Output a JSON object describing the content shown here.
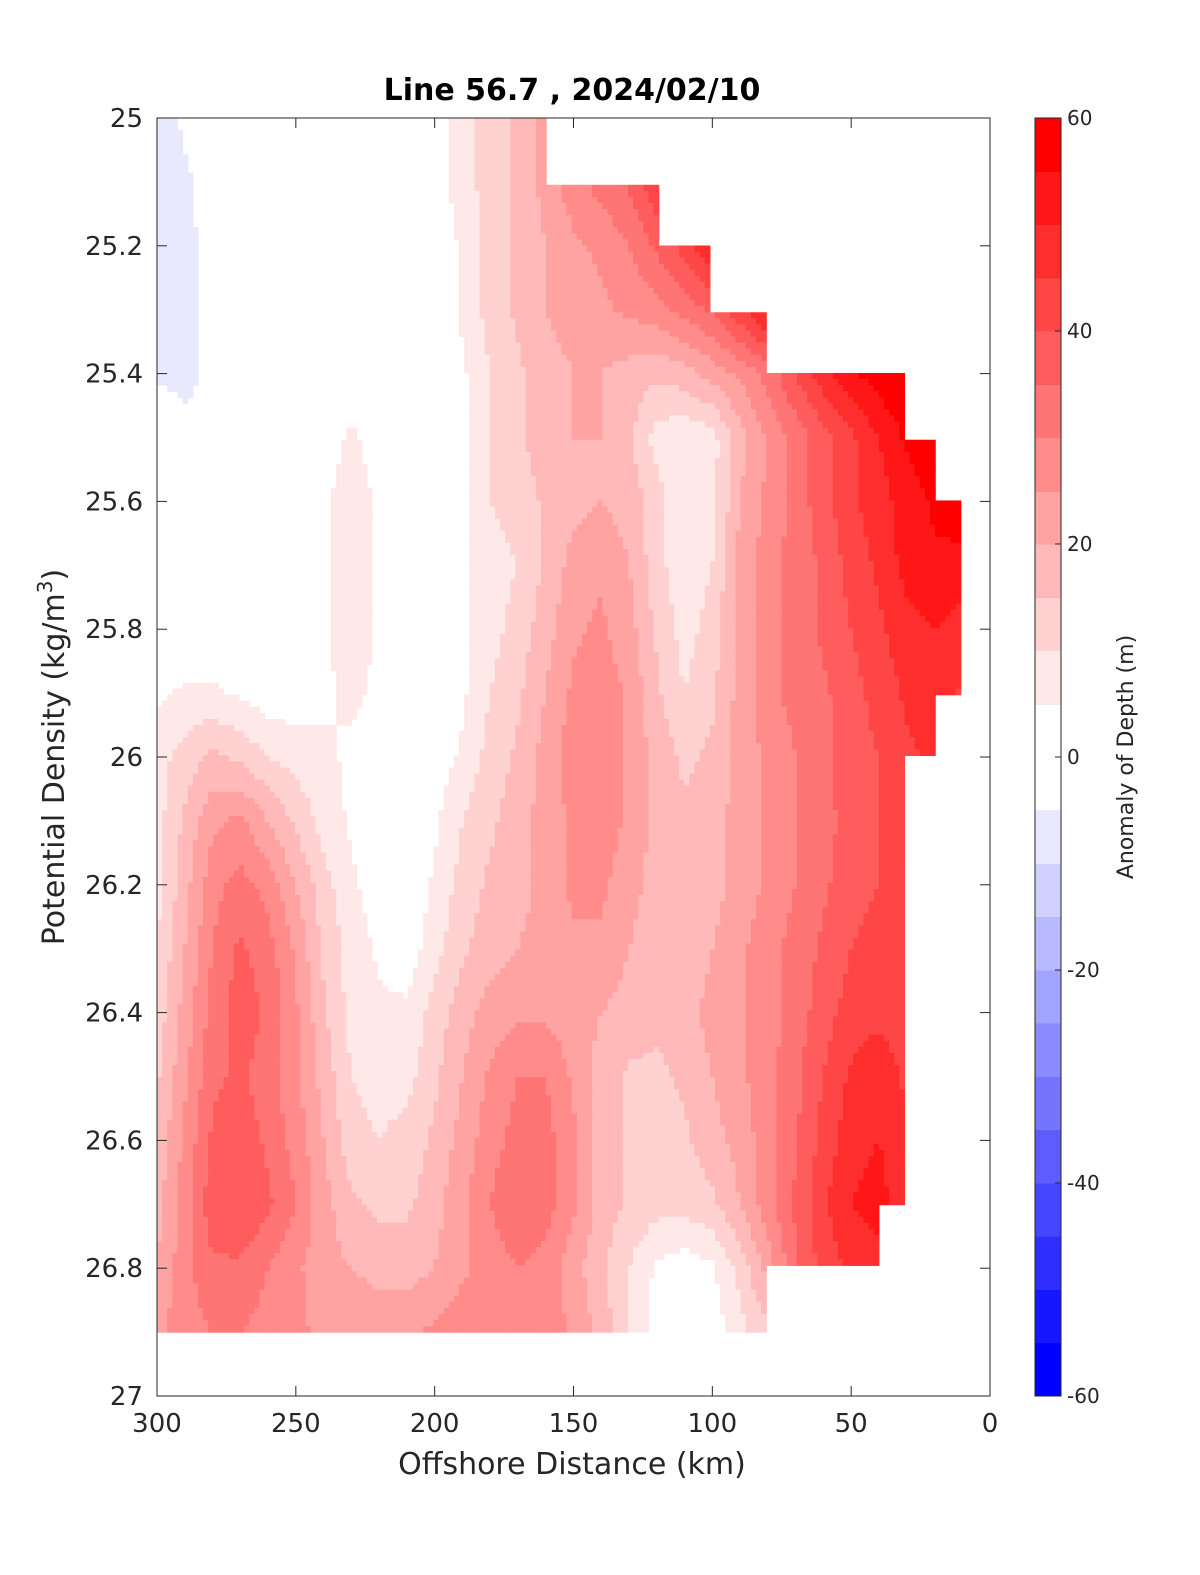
{
  "chart_data": {
    "type": "heatmap",
    "subtype": "filled-contour",
    "title": "Line 56.7 , 2024/02/10",
    "xlabel": "Offshore Distance (km)",
    "ylabel": "Potential Density (kg/m³)",
    "ylabel_parts": {
      "base": "Potential Density (kg/m",
      "sup": "3",
      "end": ")"
    },
    "xlim": [
      300,
      0
    ],
    "x_reversed": true,
    "ylim": [
      25,
      27
    ],
    "y_reversed": true,
    "xticks": [
      "300",
      "250",
      "200",
      "150",
      "100",
      "50",
      "0"
    ],
    "yticks": [
      "25",
      "25.2",
      "25.4",
      "25.6",
      "25.8",
      "26",
      "26.2",
      "26.4",
      "26.6",
      "26.8",
      "27"
    ],
    "colorbar": {
      "label": "Anomaly of Depth (m)",
      "range": [
        -60,
        60
      ],
      "step": 5,
      "ticks": [
        "60",
        "40",
        "20",
        "0",
        "-20",
        "-40",
        "-60"
      ],
      "colors": [
        "#ff0000",
        "#ffffff",
        "#0000ff"
      ]
    },
    "grid": false,
    "x": [
      300,
      290,
      280,
      270,
      260,
      250,
      240,
      230,
      220,
      210,
      200,
      190,
      180,
      170,
      160,
      150,
      140,
      130,
      120,
      110,
      100,
      90,
      80,
      70,
      60,
      50,
      40,
      30,
      20,
      10,
      5
    ],
    "y": [
      25.0,
      25.1,
      25.2,
      25.3,
      25.4,
      25.5,
      25.6,
      25.7,
      25.8,
      25.9,
      26.0,
      26.1,
      26.2,
      26.3,
      26.4,
      26.5,
      26.6,
      26.7,
      26.8,
      26.9
    ],
    "z": [
      [
        -8,
        -4,
        0,
        0,
        0,
        0,
        0,
        0,
        0,
        0,
        2,
        8,
        12,
        16,
        22,
        null,
        null,
        null,
        null,
        null,
        null,
        null,
        null,
        null,
        null,
        null,
        null,
        null,
        null,
        null,
        null
      ],
      [
        -8,
        -6,
        -2,
        0,
        0,
        0,
        0,
        0,
        0,
        0,
        2,
        8,
        12,
        16,
        22,
        28,
        32,
        36,
        44,
        null,
        null,
        null,
        null,
        null,
        null,
        null,
        null,
        null,
        null,
        null,
        null
      ],
      [
        -6,
        -6,
        -4,
        0,
        0,
        0,
        0,
        0,
        0,
        0,
        0,
        6,
        12,
        16,
        20,
        24,
        26,
        30,
        36,
        42,
        50,
        null,
        null,
        null,
        null,
        null,
        null,
        null,
        null,
        null,
        null
      ],
      [
        -6,
        -6,
        -4,
        0,
        0,
        0,
        0,
        0,
        0,
        0,
        0,
        6,
        12,
        16,
        20,
        22,
        24,
        26,
        28,
        32,
        36,
        44,
        52,
        null,
        null,
        null,
        null,
        null,
        null,
        null,
        null
      ],
      [
        -6,
        -6,
        -4,
        -2,
        0,
        0,
        0,
        2,
        0,
        0,
        0,
        4,
        10,
        14,
        18,
        20,
        20,
        18,
        16,
        18,
        22,
        26,
        32,
        40,
        48,
        54,
        58,
        60,
        null,
        null,
        null
      ],
      [
        0,
        -4,
        -4,
        -2,
        0,
        0,
        2,
        6,
        2,
        0,
        0,
        4,
        10,
        14,
        18,
        20,
        20,
        16,
        8,
        6,
        8,
        18,
        26,
        32,
        38,
        44,
        50,
        56,
        60,
        null,
        null
      ],
      [
        0,
        0,
        -2,
        -2,
        0,
        0,
        4,
        8,
        4,
        0,
        0,
        4,
        10,
        12,
        16,
        18,
        20,
        18,
        12,
        6,
        8,
        20,
        26,
        32,
        38,
        44,
        48,
        52,
        56,
        60,
        null
      ],
      [
        0,
        0,
        0,
        0,
        0,
        0,
        4,
        8,
        4,
        0,
        0,
        4,
        8,
        10,
        16,
        22,
        24,
        20,
        12,
        6,
        10,
        22,
        28,
        32,
        36,
        42,
        46,
        52,
        54,
        52,
        null
      ],
      [
        0,
        0,
        0,
        0,
        0,
        0,
        4,
        8,
        4,
        0,
        0,
        4,
        8,
        12,
        18,
        24,
        26,
        22,
        14,
        8,
        12,
        22,
        28,
        32,
        36,
        40,
        44,
        48,
        50,
        48,
        null
      ],
      [
        4,
        6,
        6,
        4,
        2,
        2,
        4,
        6,
        4,
        0,
        0,
        4,
        10,
        14,
        20,
        26,
        28,
        24,
        16,
        10,
        14,
        22,
        28,
        32,
        34,
        38,
        42,
        46,
        48,
        44,
        null
      ],
      [
        8,
        12,
        16,
        14,
        10,
        8,
        6,
        4,
        2,
        0,
        2,
        6,
        12,
        16,
        22,
        28,
        30,
        24,
        18,
        14,
        16,
        22,
        26,
        30,
        34,
        38,
        40,
        44,
        46,
        null,
        null
      ],
      [
        8,
        16,
        24,
        26,
        20,
        14,
        8,
        4,
        2,
        0,
        4,
        10,
        14,
        18,
        22,
        26,
        28,
        24,
        18,
        16,
        18,
        22,
        26,
        30,
        34,
        36,
        40,
        42,
        null,
        null,
        null
      ],
      [
        8,
        18,
        28,
        32,
        28,
        20,
        12,
        6,
        2,
        0,
        6,
        12,
        16,
        18,
        22,
        26,
        26,
        22,
        18,
        16,
        18,
        22,
        26,
        30,
        34,
        38,
        40,
        42,
        null,
        null,
        null
      ],
      [
        10,
        20,
        30,
        36,
        32,
        24,
        14,
        8,
        4,
        2,
        8,
        14,
        18,
        20,
        22,
        24,
        24,
        20,
        16,
        16,
        20,
        24,
        28,
        32,
        36,
        40,
        42,
        42,
        null,
        null,
        null
      ],
      [
        12,
        22,
        32,
        38,
        34,
        26,
        16,
        8,
        6,
        6,
        12,
        18,
        22,
        24,
        24,
        22,
        20,
        18,
        16,
        18,
        22,
        24,
        28,
        32,
        38,
        42,
        44,
        42,
        null,
        null,
        null
      ],
      [
        14,
        24,
        34,
        36,
        32,
        26,
        18,
        10,
        8,
        8,
        14,
        20,
        26,
        30,
        30,
        24,
        18,
        14,
        14,
        16,
        20,
        24,
        28,
        34,
        40,
        46,
        48,
        44,
        null,
        null,
        null
      ],
      [
        16,
        26,
        36,
        38,
        34,
        28,
        20,
        12,
        10,
        12,
        16,
        22,
        28,
        32,
        32,
        26,
        18,
        14,
        12,
        14,
        18,
        22,
        28,
        34,
        42,
        48,
        50,
        46,
        null,
        null,
        null
      ],
      [
        18,
        28,
        38,
        40,
        36,
        30,
        22,
        16,
        14,
        14,
        18,
        24,
        30,
        34,
        32,
        26,
        18,
        14,
        12,
        12,
        14,
        20,
        28,
        36,
        44,
        50,
        52,
        46,
        null,
        null,
        null
      ],
      [
        20,
        28,
        34,
        34,
        30,
        26,
        22,
        20,
        18,
        18,
        20,
        24,
        28,
        30,
        28,
        22,
        16,
        10,
        4,
        2,
        4,
        12,
        22,
        34,
        42,
        46,
        48,
        null,
        null,
        null,
        null
      ],
      [
        24,
        28,
        30,
        30,
        28,
        26,
        24,
        24,
        24,
        24,
        26,
        28,
        30,
        30,
        28,
        24,
        18,
        10,
        2,
        0,
        2,
        8,
        14,
        null,
        null,
        null,
        null,
        null,
        null,
        null,
        null
      ]
    ]
  }
}
